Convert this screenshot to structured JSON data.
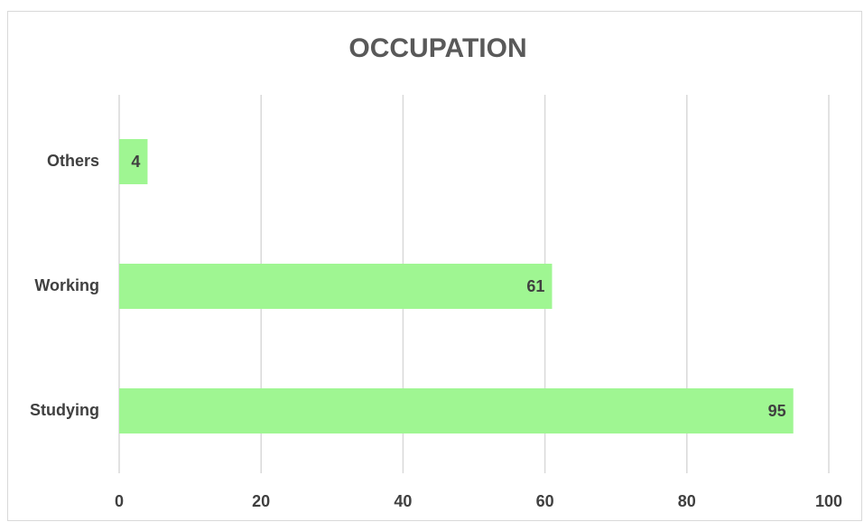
{
  "chart_data": {
    "type": "hbar",
    "title": "OCCUPATION",
    "categories": [
      "Studying",
      "Working",
      "Others"
    ],
    "values": [
      95,
      61,
      4
    ],
    "color": "#9ff692",
    "xlim": [
      0,
      100
    ],
    "xticks": [
      0,
      20,
      40,
      60,
      80,
      100
    ],
    "grid": true
  }
}
